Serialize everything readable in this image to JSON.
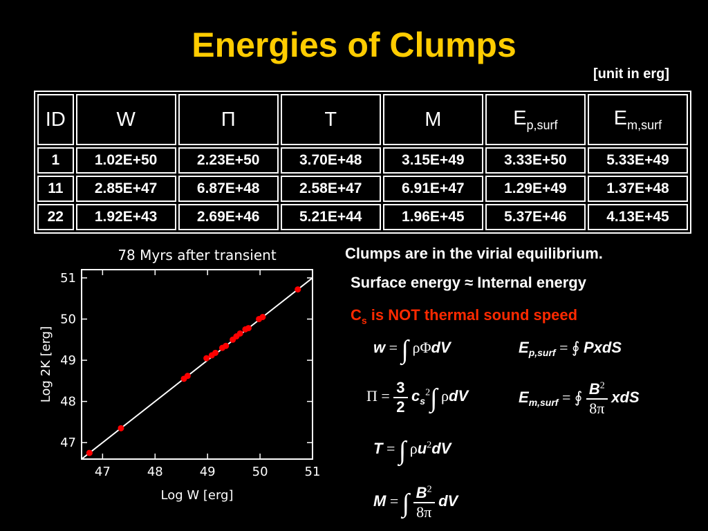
{
  "title": "Energies of Clumps",
  "unit_note": "[unit in erg]",
  "table": {
    "headers": [
      "ID",
      "W",
      "Π",
      "T",
      "M",
      "E",
      "E"
    ],
    "header_subs": [
      "",
      "",
      "",
      "",
      "",
      "p,surf",
      "m,surf"
    ],
    "rows": [
      [
        "1",
        "1.02E+50",
        "2.23E+50",
        "3.70E+48",
        "3.15E+49",
        "3.33E+50",
        "5.33E+49"
      ],
      [
        "11",
        "2.85E+47",
        "6.87E+48",
        "2.58E+47",
        "6.91E+47",
        "1.29E+49",
        "1.37E+48"
      ],
      [
        "22",
        "1.92E+43",
        "2.69E+46",
        "5.21E+44",
        "1.96E+45",
        "5.37E+46",
        "4.13E+45"
      ]
    ]
  },
  "text": {
    "line1": "Clumps are in the virial equilibrium.",
    "line2": "Surface energy ≈ Internal energy",
    "line3_main": "C",
    "line3_sub": "s",
    "line3_rest": " is NOT thermal sound speed"
  },
  "chart_data": {
    "type": "scatter",
    "title": "78 Myrs after transient",
    "xlabel": "Log W [erg]",
    "ylabel": "Log 2K [erg]",
    "xlim": [
      46.6,
      51
    ],
    "ylim": [
      46.6,
      51.2
    ],
    "xticks": [
      "47",
      "48",
      "49",
      "50",
      "51"
    ],
    "yticks": [
      "47",
      "48",
      "49",
      "50",
      "51"
    ],
    "grid": false,
    "series": [
      {
        "color": "#ff0000",
        "x": [
          46.75,
          47.35,
          48.55,
          48.62,
          48.98,
          49.08,
          49.15,
          49.28,
          49.35,
          49.48,
          49.55,
          49.62,
          49.72,
          49.78,
          49.98,
          50.05,
          50.72
        ],
        "y": [
          46.75,
          47.35,
          48.55,
          48.62,
          49.05,
          49.12,
          49.18,
          49.3,
          49.35,
          49.5,
          49.58,
          49.65,
          49.75,
          49.78,
          50.0,
          50.05,
          50.72
        ]
      }
    ],
    "fit_line": {
      "color": "#ffffff",
      "x": [
        46.6,
        51
      ],
      "y": [
        46.6,
        51
      ]
    }
  }
}
